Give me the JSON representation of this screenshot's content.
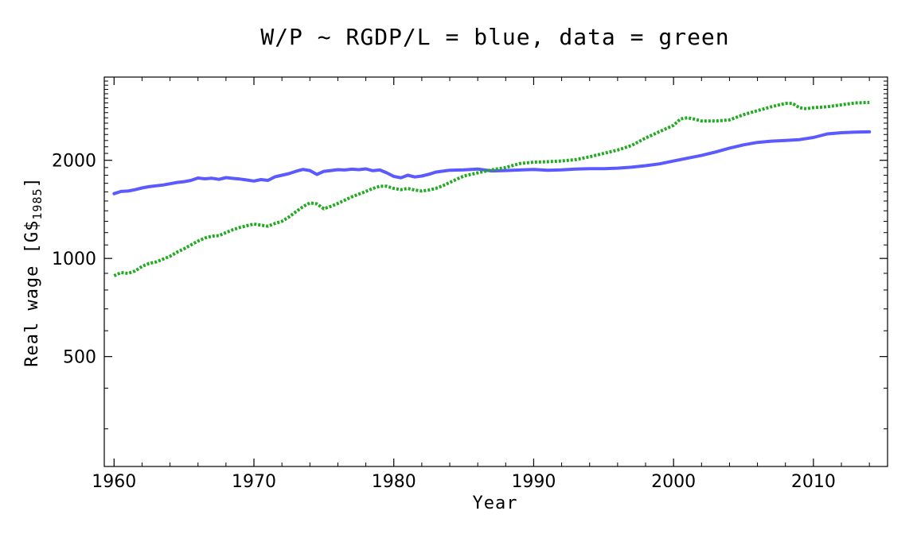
{
  "chart_data": {
    "type": "line",
    "title": "W/P ~ RGDP/L = blue, data = green",
    "xlabel": "Year",
    "ylabel": "Real wage [G$1985]",
    "ylabel_main": "Real wage [G$",
    "ylabel_sub": "1985",
    "ylabel_end": "]",
    "y_scale": "log",
    "xlim": [
      1959.3,
      2015.3
    ],
    "ylim": [
      230,
      3600
    ],
    "x_ticks": [
      1960,
      1970,
      1980,
      1990,
      2000,
      2010
    ],
    "x_tick_labels": [
      "1960",
      "1970",
      "1980",
      "1990",
      "2000",
      "2010"
    ],
    "y_ticks": [
      500,
      1000,
      2000
    ],
    "y_tick_labels": [
      "500",
      "1000",
      "2000"
    ],
    "grid": false,
    "series": [
      {
        "name": "W/P ~ RGDP/L",
        "color": "#5a5aff",
        "style": "solid",
        "x": [
          1960,
          1960.5,
          1961,
          1961.5,
          1962,
          1962.5,
          1963,
          1963.5,
          1964,
          1964.5,
          1965,
          1965.5,
          1966,
          1966.5,
          1967,
          1967.5,
          1968,
          1968.5,
          1969,
          1969.5,
          1970,
          1970.5,
          1971,
          1971.5,
          1972,
          1972.5,
          1973,
          1973.5,
          1974,
          1974.5,
          1975,
          1975.5,
          1976,
          1976.5,
          1977,
          1977.5,
          1978,
          1978.5,
          1979,
          1979.5,
          1980,
          1980.5,
          1981,
          1981.5,
          1982,
          1982.5,
          1983,
          1983.5,
          1984,
          1985,
          1986,
          1987,
          1988,
          1989,
          1990,
          1991,
          1992,
          1993,
          1994,
          1995,
          1996,
          1997,
          1998,
          1999,
          2000,
          2001,
          2002,
          2003,
          2004,
          2005,
          2006,
          2007,
          2008,
          2009,
          2010,
          2011,
          2012,
          2013,
          2014
        ],
        "y": [
          1580,
          1605,
          1610,
          1625,
          1645,
          1660,
          1670,
          1680,
          1695,
          1710,
          1720,
          1735,
          1765,
          1755,
          1762,
          1748,
          1770,
          1760,
          1752,
          1740,
          1728,
          1745,
          1735,
          1780,
          1800,
          1820,
          1850,
          1875,
          1860,
          1810,
          1850,
          1860,
          1872,
          1868,
          1878,
          1872,
          1882,
          1858,
          1868,
          1830,
          1785,
          1768,
          1800,
          1778,
          1790,
          1812,
          1840,
          1852,
          1865,
          1870,
          1880,
          1855,
          1860,
          1868,
          1875,
          1865,
          1870,
          1880,
          1885,
          1885,
          1892,
          1905,
          1925,
          1950,
          1990,
          2030,
          2070,
          2120,
          2180,
          2230,
          2270,
          2290,
          2300,
          2315,
          2350,
          2410,
          2430,
          2440,
          2445
        ]
      },
      {
        "name": "data",
        "color": "#22aa22",
        "style": "dotted",
        "x": [
          1960,
          1960.5,
          1961,
          1961.5,
          1962,
          1962.5,
          1963,
          1963.5,
          1964,
          1964.5,
          1965,
          1965.5,
          1966,
          1966.5,
          1967,
          1967.5,
          1968,
          1968.5,
          1969,
          1969.5,
          1970,
          1970.5,
          1971,
          1971.5,
          1972,
          1972.5,
          1973,
          1973.5,
          1974,
          1974.5,
          1975,
          1975.5,
          1976,
          1976.5,
          1977,
          1977.5,
          1978,
          1978.5,
          1979,
          1979.5,
          1980,
          1980.5,
          1981,
          1981.5,
          1982,
          1982.5,
          1983,
          1983.5,
          1984,
          1985,
          1986,
          1987,
          1988,
          1989,
          1990,
          1991,
          1992,
          1993,
          1994,
          1995,
          1996,
          1997,
          1998,
          1999,
          2000,
          2000.5,
          2001,
          2001.5,
          2002,
          2003,
          2004,
          2005,
          2006,
          2007,
          2008,
          2008.5,
          2009,
          2009.5,
          2010,
          2011,
          2012,
          2013,
          2014
        ],
        "y": [
          885,
          905,
          900,
          915,
          945,
          965,
          975,
          995,
          1015,
          1045,
          1070,
          1100,
          1130,
          1155,
          1170,
          1175,
          1200,
          1225,
          1245,
          1260,
          1275,
          1265,
          1255,
          1280,
          1300,
          1340,
          1390,
          1440,
          1480,
          1470,
          1420,
          1445,
          1475,
          1510,
          1545,
          1575,
          1605,
          1640,
          1665,
          1665,
          1640,
          1625,
          1640,
          1620,
          1610,
          1620,
          1640,
          1670,
          1710,
          1790,
          1830,
          1870,
          1900,
          1955,
          1975,
          1980,
          1990,
          2010,
          2050,
          2100,
          2150,
          2220,
          2340,
          2450,
          2560,
          2680,
          2700,
          2675,
          2640,
          2640,
          2660,
          2760,
          2840,
          2920,
          2990,
          2990,
          2900,
          2880,
          2900,
          2920,
          2960,
          3000,
          3010
        ]
      }
    ]
  }
}
